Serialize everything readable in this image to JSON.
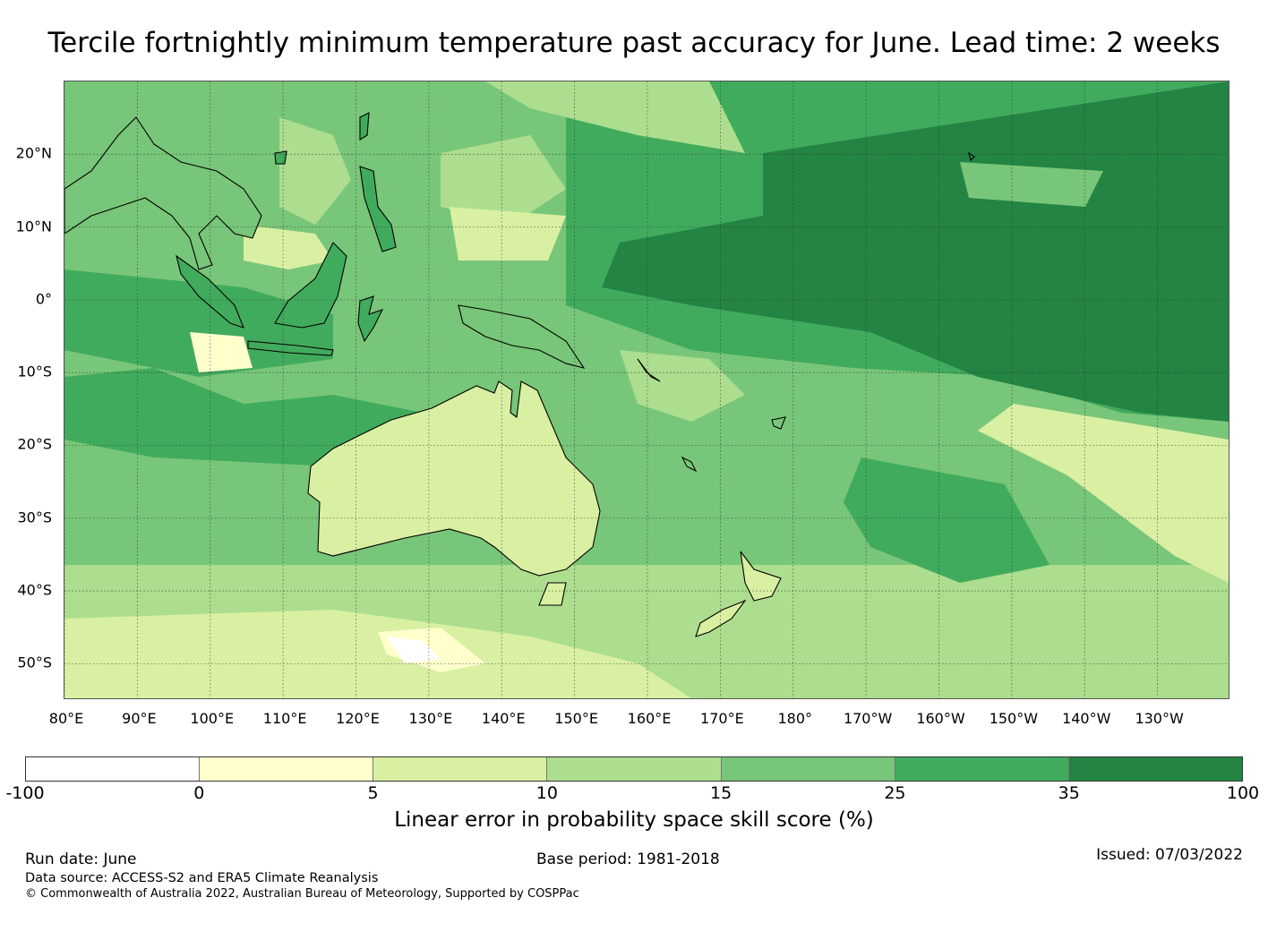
{
  "title": "Tercile fortnightly minimum temperature past accuracy for June. Lead time: 2 weeks",
  "map": {
    "lat_range": [
      -55,
      30
    ],
    "lon_range": [
      80,
      240
    ],
    "lat_labels": [
      "20°N",
      "10°N",
      "0°",
      "10°S",
      "20°S",
      "30°S",
      "40°S",
      "50°S"
    ],
    "lon_labels": [
      "80°E",
      "90°E",
      "100°E",
      "110°E",
      "120°E",
      "130°E",
      "140°E",
      "150°E",
      "160°E",
      "170°E",
      "180°",
      "170°W",
      "160°W",
      "150°W",
      "140°W",
      "130°W"
    ],
    "gridlines": true,
    "coastlines": true
  },
  "colorbar": {
    "ticks": [
      "-100",
      "0",
      "5",
      "10",
      "15",
      "25",
      "35",
      "100"
    ],
    "colors": [
      "#ffffff",
      "#ffffcc",
      "#d9f0a3",
      "#addd8e",
      "#78c679",
      "#41ab5d",
      "#238443"
    ],
    "label": "Linear error in probability space skill score (%)"
  },
  "footer": {
    "run_date": "Run date: June",
    "base_period": "Base period: 1981-2018",
    "issued": "Issued: 07/03/2022",
    "data_source": "Data source: ACCESS-S2 and ERA5 Climate Reanalysis",
    "copyright": "© Commonwealth of Australia 2022, Australian Bureau of Meteorology, Supported by COSPPac"
  }
}
